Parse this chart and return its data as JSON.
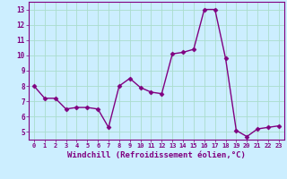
{
  "x": [
    0,
    1,
    2,
    3,
    4,
    5,
    6,
    7,
    8,
    9,
    10,
    11,
    12,
    13,
    14,
    15,
    16,
    17,
    18,
    19,
    20,
    21,
    22,
    23
  ],
  "y": [
    8.0,
    7.2,
    7.2,
    6.5,
    6.6,
    6.6,
    6.5,
    5.3,
    8.0,
    8.5,
    7.9,
    7.6,
    7.5,
    10.1,
    10.2,
    10.4,
    13.0,
    13.0,
    9.8,
    5.1,
    4.7,
    5.2,
    5.3,
    5.4
  ],
  "line_color": "#800080",
  "marker": "D",
  "marker_size": 2.5,
  "line_width": 1.0,
  "bg_color": "#cceeff",
  "grid_color": "#aaddcc",
  "xlabel": "Windchill (Refroidissement éolien,°C)",
  "xlabel_color": "#800080",
  "tick_color": "#800080",
  "spine_color": "#800080",
  "ylim": [
    4.5,
    13.5
  ],
  "yticks": [
    5,
    6,
    7,
    8,
    9,
    10,
    11,
    12,
    13
  ],
  "xlim": [
    -0.5,
    23.5
  ],
  "xticks": [
    0,
    1,
    2,
    3,
    4,
    5,
    6,
    7,
    8,
    9,
    10,
    11,
    12,
    13,
    14,
    15,
    16,
    17,
    18,
    19,
    20,
    21,
    22,
    23
  ],
  "xlabel_fontsize": 6.5,
  "tick_fontsize_x": 5.0,
  "tick_fontsize_y": 5.5
}
